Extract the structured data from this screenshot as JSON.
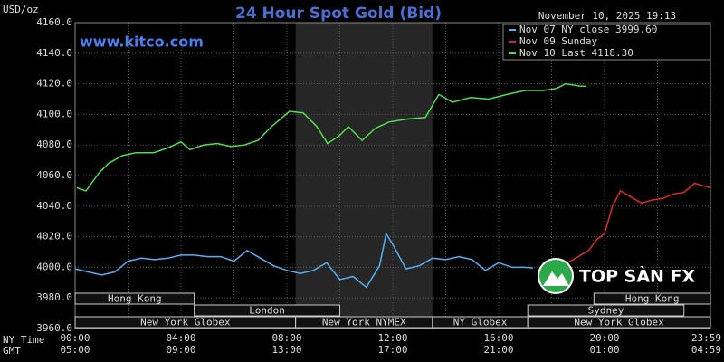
{
  "chart_data": {
    "type": "line",
    "title": "24 Hour Spot Gold (Bid)",
    "y_label": "USD/oz",
    "site": "www.kitco.com",
    "timestamp": "November 10, 2025 19:13",
    "x_row_label": "NY Time",
    "x2_row_label": "GMT",
    "watermark": "TOP SÀN FX",
    "ylim": [
      3960,
      4160
    ],
    "yticks": [
      {
        "value": 3960,
        "label": "3960.0"
      },
      {
        "value": 3980,
        "label": "3980.0"
      },
      {
        "value": 4000,
        "label": "4000.0"
      },
      {
        "value": 4020,
        "label": "4020.0"
      },
      {
        "value": 4040,
        "label": "4040.0"
      },
      {
        "value": 4060,
        "label": "4060.0"
      },
      {
        "value": 4080,
        "label": "4080.0"
      },
      {
        "value": 4100,
        "label": "4100.0"
      },
      {
        "value": 4120,
        "label": "4120.0"
      },
      {
        "value": 4140,
        "label": "4140.0"
      },
      {
        "value": 4160,
        "label": "4160.0"
      }
    ],
    "xlim": [
      0,
      24
    ],
    "xticks": [
      {
        "value": 0,
        "label": "00:00"
      },
      {
        "value": 4,
        "label": "04:00"
      },
      {
        "value": 8,
        "label": "08:00"
      },
      {
        "value": 12,
        "label": "12:00"
      },
      {
        "value": 16,
        "label": "16:00"
      },
      {
        "value": 20,
        "label": "20:00"
      },
      {
        "value": 23.98,
        "label": "23:59"
      }
    ],
    "xticks_gmt": [
      "05:00",
      "09:00",
      "13:00",
      "17:00",
      "21:00",
      "01:00",
      "04:59"
    ],
    "minor_xticks": [
      2,
      6,
      10,
      14,
      18,
      22
    ],
    "grid": true,
    "shaded": [
      8.33,
      13.5
    ],
    "sessions": [
      [
        {
          "label": "Hong Kong",
          "start": 0,
          "end": 4.5
        },
        {
          "label": "Hong Kong",
          "start": 19.6,
          "end": 24
        }
      ],
      [
        {
          "label": "London",
          "start": 4.5,
          "end": 10
        },
        {
          "label": "Sydney",
          "start": 17.1,
          "end": 23
        }
      ],
      [
        {
          "label": "New York Globex",
          "start": 0,
          "end": 8.33
        },
        {
          "label": "New York NYMEX",
          "start": 8.33,
          "end": 13.5
        },
        {
          "label": "NY Globex",
          "start": 13.5,
          "end": 17.1
        },
        {
          "label": "New York Globex",
          "start": 17.1,
          "end": 24
        }
      ]
    ],
    "series": [
      {
        "name": "Nov 07 NY close 3999.60",
        "color": "#55aef0",
        "x": [
          0,
          0.5,
          1,
          1.5,
          2,
          2.5,
          3,
          3.5,
          4,
          4.5,
          5,
          5.5,
          6,
          6.5,
          7,
          7.5,
          8,
          8.5,
          9,
          9.5,
          10,
          10.5,
          11,
          11.5,
          11.75,
          12,
          12.5,
          13,
          13.5,
          14,
          14.5,
          15,
          15.5,
          16,
          16.5,
          17,
          17.3
        ],
        "values": [
          3999,
          3997,
          3995,
          3997,
          4004,
          4006,
          4005,
          4006,
          4008,
          4008,
          4007,
          4007,
          4004,
          4011,
          4006,
          4001,
          3998,
          3996,
          3998,
          4003,
          3992,
          3994,
          3987,
          4001,
          4022,
          4015,
          3999,
          4001,
          4006,
          4005,
          4007,
          4005,
          3998,
          4003,
          4000,
          4000,
          3999.6
        ]
      },
      {
        "name": "Nov 09 Sunday",
        "color": "#e02828",
        "x": [
          17.8,
          18.2,
          18.6,
          19,
          19.4,
          19.7,
          20,
          20.3,
          20.6,
          21,
          21.4,
          21.8,
          22.2,
          22.6,
          23,
          23.4,
          23.8,
          24
        ],
        "values": [
          4000,
          4005,
          4003,
          4007,
          4011,
          4018,
          4022,
          4040,
          4050,
          4046,
          4042,
          4044,
          4045,
          4048,
          4049,
          4055,
          4053,
          4052
        ]
      },
      {
        "name": "Nov 10 Last 4118.30",
        "color": "#4ee04e",
        "x": [
          0.07,
          0.41,
          0.92,
          1.26,
          1.78,
          2.29,
          2.97,
          3.49,
          4,
          4.34,
          4.85,
          5.37,
          5.88,
          6.39,
          6.91,
          7.42,
          8.1,
          8.62,
          9.13,
          9.54,
          9.98,
          10.32,
          10.84,
          11.35,
          11.86,
          12.55,
          13.23,
          13.74,
          14.26,
          14.94,
          15.62,
          16.31,
          16.99,
          17.68,
          18.19,
          18.53,
          19.04,
          19.32
        ],
        "values": [
          4052,
          4050,
          4062,
          4068,
          4073,
          4075,
          4075,
          4078,
          4082,
          4077,
          4080,
          4081,
          4079,
          4080,
          4083,
          4092,
          4102,
          4101,
          4092,
          4081,
          4086,
          4092,
          4083,
          4091,
          4095,
          4097,
          4098,
          4113,
          4108,
          4111,
          4110,
          4113,
          4115.6,
          4115.6,
          4117,
          4120,
          4118.6,
          4118.3
        ]
      }
    ]
  }
}
